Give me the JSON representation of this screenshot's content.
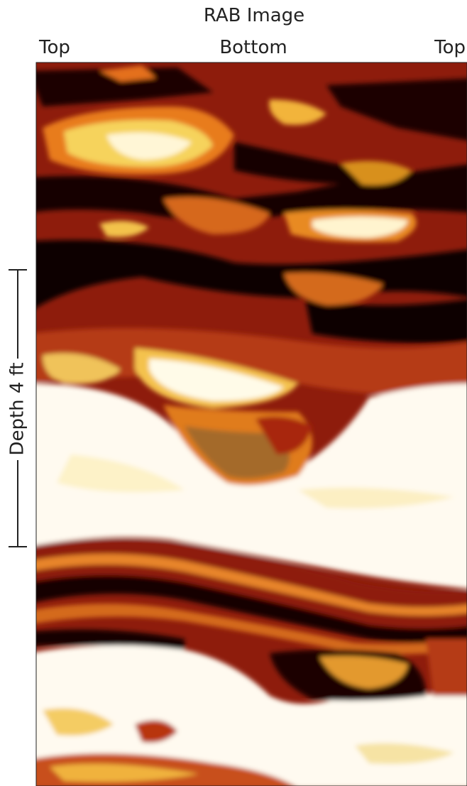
{
  "title": "RAB Image",
  "axis_labels": [
    "Top",
    "Bottom",
    "Top"
  ],
  "scale_label": "Depth 4 ft"
}
